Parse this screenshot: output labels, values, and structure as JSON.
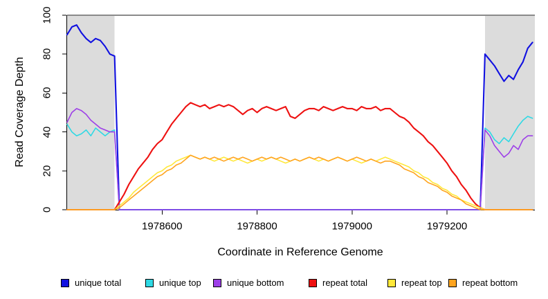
{
  "figure": {
    "xlabel": "Coordinate in Reference Genome",
    "ylabel": "Read Coverage Depth"
  },
  "chart_data": {
    "type": "line",
    "title": "",
    "xlabel": "Coordinate in Reference Genome",
    "ylabel": "Read Coverage Depth",
    "xlim": [
      1978400,
      1979385
    ],
    "ylim": [
      0,
      100
    ],
    "x_ticks": [
      1978600,
      1978800,
      1979000,
      1979200
    ],
    "y_ticks": [
      0,
      20,
      40,
      60,
      80,
      100
    ],
    "grid": false,
    "legend_position": "bottom",
    "shade_color": "#dcdcdc",
    "top_rule_color": "#8a8a8a",
    "top_rule_y": 100,
    "shaded_regions": [
      {
        "x1": 1978400,
        "x2": 1978500
      },
      {
        "x1": 1979280,
        "x2": 1979385
      }
    ],
    "x0": 1978400,
    "dx": 10,
    "series": [
      {
        "name": "unique total",
        "color": "#1111e0",
        "values": [
          90,
          94,
          95,
          91,
          88,
          86,
          88,
          87,
          84,
          80,
          79,
          0,
          0,
          0,
          0,
          0,
          0,
          0,
          0,
          0,
          0,
          0,
          0,
          0,
          0,
          0,
          0,
          0,
          0,
          0,
          0,
          0,
          0,
          0,
          0,
          0,
          0,
          0,
          0,
          0,
          0,
          0,
          0,
          0,
          0,
          0,
          0,
          0,
          0,
          0,
          0,
          0,
          0,
          0,
          0,
          0,
          0,
          0,
          0,
          0,
          0,
          0,
          0,
          0,
          0,
          0,
          0,
          0,
          0,
          0,
          0,
          0,
          0,
          0,
          0,
          0,
          0,
          0,
          0,
          0,
          0,
          0,
          0,
          0,
          0,
          0,
          0,
          0,
          80,
          77,
          74,
          70,
          66,
          69,
          67,
          72,
          76,
          83,
          86
        ]
      },
      {
        "name": "unique top",
        "color": "#2fd9e4",
        "values": [
          44,
          40,
          38,
          39,
          41,
          38,
          42,
          40,
          38,
          40,
          41,
          0,
          0,
          0,
          0,
          0,
          0,
          0,
          0,
          0,
          0,
          0,
          0,
          0,
          0,
          0,
          0,
          0,
          0,
          0,
          0,
          0,
          0,
          0,
          0,
          0,
          0,
          0,
          0,
          0,
          0,
          0,
          0,
          0,
          0,
          0,
          0,
          0,
          0,
          0,
          0,
          0,
          0,
          0,
          0,
          0,
          0,
          0,
          0,
          0,
          0,
          0,
          0,
          0,
          0,
          0,
          0,
          0,
          0,
          0,
          0,
          0,
          0,
          0,
          0,
          0,
          0,
          0,
          0,
          0,
          0,
          0,
          0,
          0,
          0,
          0,
          0,
          0,
          42,
          40,
          36,
          34,
          37,
          35,
          39,
          43,
          46,
          48,
          47
        ]
      },
      {
        "name": "unique bottom",
        "color": "#9d3fe8",
        "values": [
          45,
          50,
          52,
          51,
          49,
          46,
          44,
          42,
          41,
          40,
          40,
          0,
          0,
          0,
          0,
          0,
          0,
          0,
          0,
          0,
          0,
          0,
          0,
          0,
          0,
          0,
          0,
          0,
          0,
          0,
          0,
          0,
          0,
          0,
          0,
          0,
          0,
          0,
          0,
          0,
          0,
          0,
          0,
          0,
          0,
          0,
          0,
          0,
          0,
          0,
          0,
          0,
          0,
          0,
          0,
          0,
          0,
          0,
          0,
          0,
          0,
          0,
          0,
          0,
          0,
          0,
          0,
          0,
          0,
          0,
          0,
          0,
          0,
          0,
          0,
          0,
          0,
          0,
          0,
          0,
          0,
          0,
          0,
          0,
          0,
          0,
          0,
          0,
          41,
          38,
          33,
          30,
          27,
          29,
          33,
          31,
          36,
          38,
          38
        ]
      },
      {
        "name": "repeat total",
        "color": "#ee1111",
        "values": [
          0,
          0,
          0,
          0,
          0,
          0,
          0,
          0,
          0,
          0,
          0,
          4,
          8,
          13,
          17,
          21,
          24,
          27,
          31,
          34,
          36,
          40,
          44,
          47,
          50,
          53,
          55,
          54,
          53,
          54,
          52,
          53,
          54,
          53,
          54,
          53,
          51,
          49,
          51,
          52,
          50,
          52,
          53,
          52,
          51,
          52,
          53,
          48,
          47,
          49,
          51,
          52,
          52,
          51,
          53,
          52,
          51,
          52,
          53,
          52,
          52,
          51,
          53,
          52,
          52,
          53,
          51,
          52,
          52,
          50,
          48,
          47,
          45,
          42,
          40,
          38,
          35,
          33,
          30,
          27,
          24,
          20,
          17,
          13,
          10,
          6,
          3,
          1,
          0,
          0,
          0,
          0,
          0,
          0,
          0,
          0,
          0,
          0,
          0
        ]
      },
      {
        "name": "repeat top",
        "color": "#ffe83a",
        "values": [
          0,
          0,
          0,
          0,
          0,
          0,
          0,
          0,
          0,
          0,
          0,
          2,
          4,
          6,
          9,
          11,
          13,
          15,
          17,
          19,
          20,
          22,
          23,
          25,
          26,
          27,
          28,
          27,
          26,
          27,
          26,
          25,
          26,
          27,
          26,
          25,
          26,
          25,
          24,
          25,
          26,
          25,
          26,
          27,
          26,
          25,
          24,
          25,
          26,
          25,
          26,
          27,
          26,
          25,
          26,
          25,
          26,
          27,
          26,
          25,
          26,
          25,
          24,
          25,
          26,
          25,
          26,
          27,
          26,
          25,
          24,
          23,
          22,
          20,
          19,
          17,
          16,
          14,
          13,
          11,
          10,
          8,
          7,
          5,
          4,
          3,
          2,
          1,
          0,
          0,
          0,
          0,
          0,
          0,
          0,
          0,
          0,
          0,
          0
        ]
      },
      {
        "name": "repeat bottom",
        "color": "#ffa41f",
        "values": [
          0,
          0,
          0,
          0,
          0,
          0,
          0,
          0,
          0,
          0,
          0,
          1,
          3,
          5,
          7,
          9,
          11,
          13,
          15,
          17,
          18,
          20,
          21,
          23,
          24,
          26,
          28,
          27,
          26,
          27,
          26,
          27,
          26,
          25,
          26,
          27,
          26,
          27,
          26,
          25,
          26,
          27,
          26,
          27,
          26,
          27,
          26,
          25,
          26,
          25,
          26,
          27,
          26,
          27,
          26,
          25,
          26,
          27,
          26,
          25,
          26,
          27,
          26,
          25,
          26,
          25,
          24,
          25,
          25,
          24,
          23,
          21,
          20,
          19,
          17,
          16,
          14,
          13,
          12,
          10,
          9,
          7,
          6,
          5,
          3,
          2,
          1,
          0,
          0,
          0,
          0,
          0,
          0,
          0,
          0,
          0,
          0,
          0,
          0
        ]
      }
    ]
  }
}
